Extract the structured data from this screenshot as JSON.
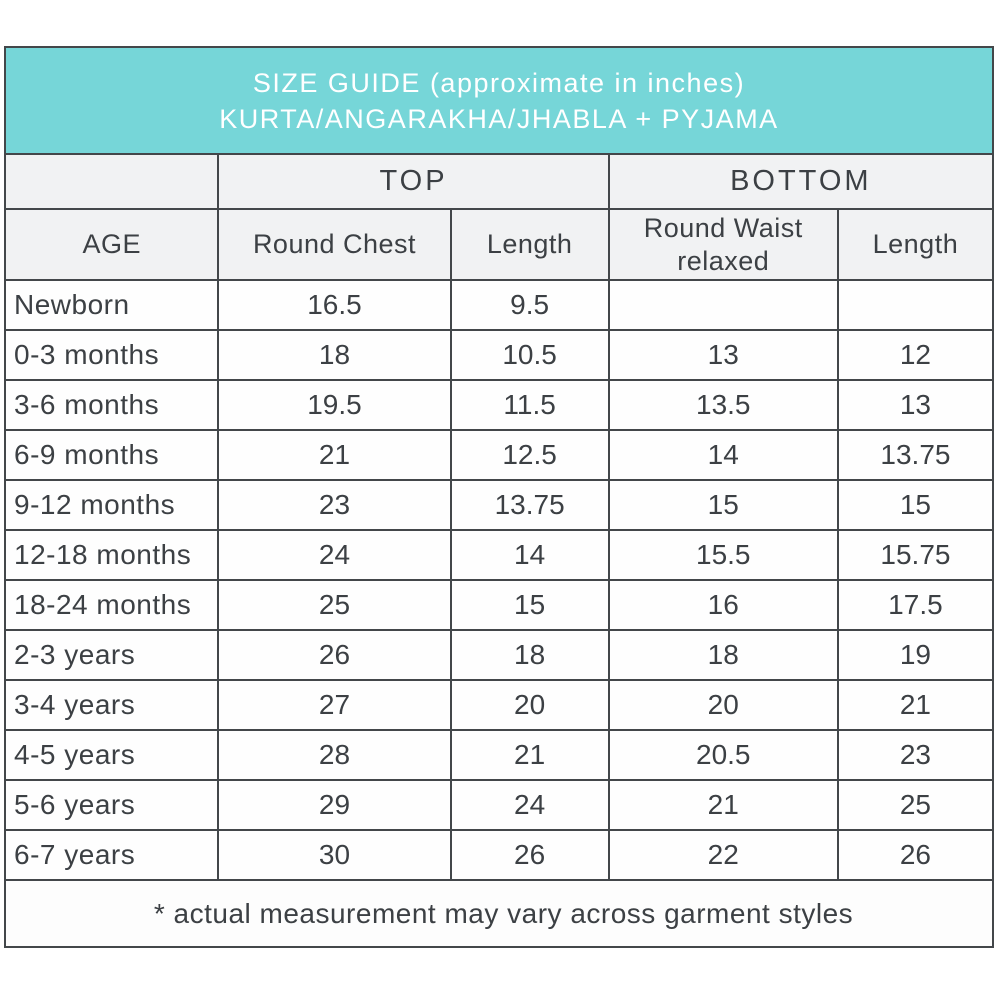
{
  "colors": {
    "title_band_bg": "#76d6d8",
    "title_text": "#ffffff",
    "border": "#43474a",
    "header_bg": "#f1f2f3",
    "body_text": "#3c4044"
  },
  "title": {
    "line1": "SIZE GUIDE (approximate in inches)",
    "line2": "KURTA/ANGARAKHA/JHABLA + PYJAMA"
  },
  "table": {
    "group_headers": {
      "top": "TOP",
      "bottom": "BOTTOM"
    },
    "columns": [
      "AGE",
      "Round Chest",
      "Length",
      "Round Waist relaxed",
      "Length"
    ],
    "rows": [
      {
        "age": "Newborn",
        "round_chest": "16.5",
        "top_length": "9.5",
        "round_waist": "",
        "bottom_length": ""
      },
      {
        "age": "0-3 months",
        "round_chest": "18",
        "top_length": "10.5",
        "round_waist": "13",
        "bottom_length": "12"
      },
      {
        "age": "3-6 months",
        "round_chest": "19.5",
        "top_length": "11.5",
        "round_waist": "13.5",
        "bottom_length": "13"
      },
      {
        "age": "6-9 months",
        "round_chest": "21",
        "top_length": "12.5",
        "round_waist": "14",
        "bottom_length": "13.75"
      },
      {
        "age": "9-12 months",
        "round_chest": "23",
        "top_length": "13.75",
        "round_waist": "15",
        "bottom_length": "15"
      },
      {
        "age": "12-18 months",
        "round_chest": "24",
        "top_length": "14",
        "round_waist": "15.5",
        "bottom_length": "15.75"
      },
      {
        "age": "18-24 months",
        "round_chest": "25",
        "top_length": "15",
        "round_waist": "16",
        "bottom_length": "17.5"
      },
      {
        "age": "2-3 years",
        "round_chest": "26",
        "top_length": "18",
        "round_waist": "18",
        "bottom_length": "19"
      },
      {
        "age": "3-4 years",
        "round_chest": "27",
        "top_length": "20",
        "round_waist": "20",
        "bottom_length": "21"
      },
      {
        "age": "4-5 years",
        "round_chest": "28",
        "top_length": "21",
        "round_waist": "20.5",
        "bottom_length": "23"
      },
      {
        "age": "5-6 years",
        "round_chest": "29",
        "top_length": "24",
        "round_waist": "21",
        "bottom_length": "25"
      },
      {
        "age": "6-7 years",
        "round_chest": "30",
        "top_length": "26",
        "round_waist": "22",
        "bottom_length": "26"
      }
    ]
  },
  "footnote": "* actual measurement may vary across garment styles",
  "chart_data": {
    "type": "table",
    "title": "SIZE GUIDE (approximate in inches) KURTA/ANGARAKHA/JHABLA + PYJAMA",
    "column_groups": [
      {
        "label": "",
        "span": 1
      },
      {
        "label": "TOP",
        "span": 2
      },
      {
        "label": "BOTTOM",
        "span": 2
      }
    ],
    "columns": [
      "AGE",
      "Round Chest",
      "Length",
      "Round Waist relaxed",
      "Length"
    ],
    "rows": [
      [
        "Newborn",
        16.5,
        9.5,
        null,
        null
      ],
      [
        "0-3 months",
        18,
        10.5,
        13,
        12
      ],
      [
        "3-6 months",
        19.5,
        11.5,
        13.5,
        13
      ],
      [
        "6-9 months",
        21,
        12.5,
        14,
        13.75
      ],
      [
        "9-12 months",
        23,
        13.75,
        15,
        15
      ],
      [
        "12-18 months",
        24,
        14,
        15.5,
        15.75
      ],
      [
        "18-24 months",
        25,
        15,
        16,
        17.5
      ],
      [
        "2-3 years",
        26,
        18,
        18,
        19
      ],
      [
        "3-4 years",
        27,
        20,
        20,
        21
      ],
      [
        "4-5 years",
        28,
        21,
        20.5,
        23
      ],
      [
        "5-6 years",
        29,
        24,
        21,
        25
      ],
      [
        "6-7 years",
        30,
        26,
        22,
        26
      ]
    ],
    "footnote": "* actual measurement may vary across garment styles",
    "units": "inches"
  }
}
